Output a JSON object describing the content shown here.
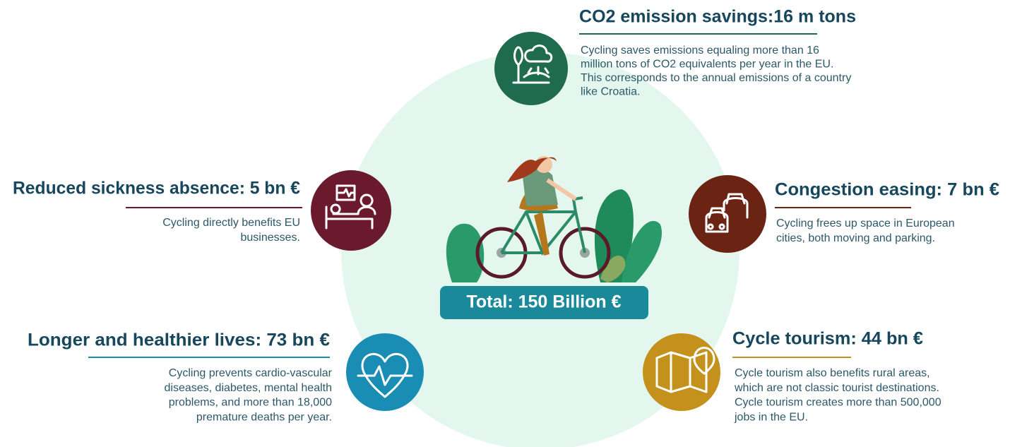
{
  "total": "Total: 150 Billion €",
  "items": [
    {
      "title": "CO2 emission savings:16 m tons",
      "color": "#1e6b4f",
      "description": [
        "Cycling saves emissions equaling more than 16",
        "million tons of CO2 equivalents per year in the EU.",
        "This corresponds to the annual emissions of a country",
        "like Croatia."
      ]
    },
    {
      "title": "Reduced sickness absence: 5 bn €",
      "color": "#6b1a2e",
      "description": [
        "Cycling directly benefits EU",
        "businesses."
      ]
    },
    {
      "title": "Congestion easing: 7 bn €",
      "color": "#6b2414",
      "description": [
        "Cycling frees up space in European",
        "cities, both moving and parking."
      ]
    },
    {
      "title": "Longer and healthier lives: 73 bn €",
      "color": "#1a8db5",
      "description": [
        "Cycling prevents cardio-vascular",
        "diseases, diabetes, mental health",
        "problems, and more than 18,000",
        "premature deaths per year."
      ]
    },
    {
      "title": "Cycle tourism: 44 bn €",
      "color": "#c4921c",
      "description": [
        "Cycle tourism also benefits rural areas,",
        "which are not classic tourist destinations.",
        "Cycle tourism creates more than 500,000",
        "jobs in the EU."
      ]
    }
  ]
}
